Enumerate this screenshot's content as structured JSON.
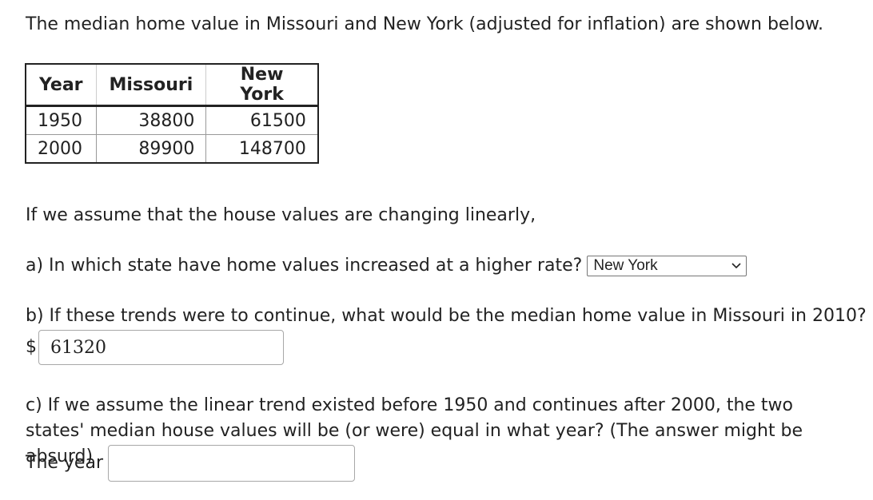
{
  "intro": "The median home value in Missouri and New York (adjusted for inflation) are shown below.",
  "table": {
    "headers": [
      "Year",
      "Missouri",
      "New York"
    ],
    "rows": [
      [
        "1950",
        "38800",
        "61500"
      ],
      [
        "2000",
        "89900",
        "148700"
      ]
    ]
  },
  "assumption": "If we assume that the house values are changing linearly,",
  "question_a": {
    "prompt": "a) In which state have home values increased at a higher rate?",
    "selected": "New York"
  },
  "question_b": {
    "prompt": "b) If these trends were to continue, what would be the median home value in Missouri in 2010?",
    "prefix": "$",
    "answer": "61320"
  },
  "question_c": {
    "prompt": "c) If we assume the linear trend existed before 1950 and continues after 2000, the two states' median house values will be (or were) equal in what year? (The answer might be absurd)",
    "label": "The year",
    "answer": ""
  }
}
